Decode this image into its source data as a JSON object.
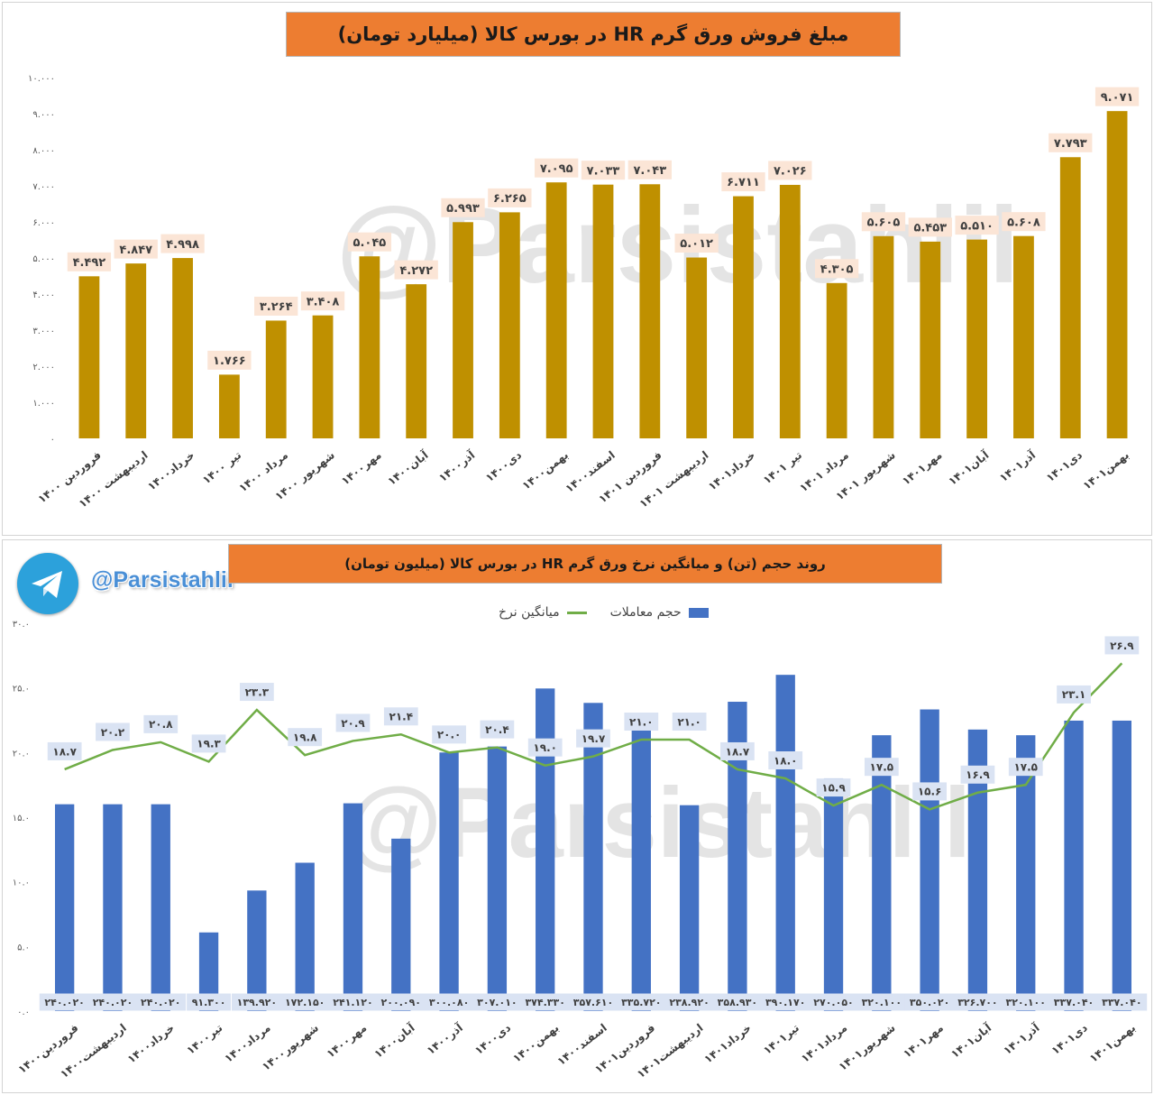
{
  "colors": {
    "title_bg": "#ed7d31",
    "bar1": "#bf9000",
    "bar2": "#4472c4",
    "line": "#70ad47",
    "label_bg1": "#fbe5d6",
    "label_bg2": "#dae3f3"
  },
  "watermark": "@Parsistahlil",
  "telegram": {
    "icon": "telegram-icon",
    "handle": "@Parsistahlil"
  },
  "chart_data": [
    {
      "type": "bar",
      "title": "مبلغ فروش  ورق گرم HR در بورس کالا (میلیارد تومان)",
      "categories": [
        "فروردین ۱۴۰۰",
        "اردیبهشت ۱۴۰۰",
        "خرداد۱۴۰۰",
        "تیر ۱۴۰۰",
        "مرداد ۱۴۰۰",
        "شهریور ۱۴۰۰",
        "مهر۱۴۰۰",
        "آبان۱۴۰۰",
        "آذر۱۴۰۰",
        "دی۱۴۰۰",
        "بهمن۱۴۰۰",
        "اسفند۱۴۰۰",
        "فروردین ۱۴۰۱",
        "اردیبهشت ۱۴۰۱",
        "خرداد۱۴۰۱",
        "تیر ۱۴۰۱",
        "مرداد ۱۴۰۱",
        "شهریور ۱۴۰۱",
        "مهر۱۴۰۱",
        "آبان۱۴۰۱",
        "آذر۱۴۰۱",
        "دی۱۴۰۱",
        "بهمن۱۴۰۱"
      ],
      "values": [
        4492,
        4847,
        4998,
        1766,
        3264,
        3408,
        5045,
        4272,
        5993,
        6265,
        7095,
        7033,
        7043,
        5012,
        6711,
        7026,
        4305,
        5605,
        5453,
        5510,
        5608,
        7793,
        9071
      ],
      "data_labels": [
        "۴.۴۹۲",
        "۴.۸۴۷",
        "۴.۹۹۸",
        "۱.۷۶۶",
        "۳.۲۶۴",
        "۳.۴۰۸",
        "۵.۰۴۵",
        "۴.۲۷۲",
        "۵.۹۹۳",
        "۶.۲۶۵",
        "۷.۰۹۵",
        "۷.۰۳۳",
        "۷.۰۴۳",
        "۵.۰۱۲",
        "۶.۷۱۱",
        "۷.۰۲۶",
        "۴.۳۰۵",
        "۵.۶۰۵",
        "۵.۴۵۳",
        "۵.۵۱۰",
        "۵.۶۰۸",
        "۷.۷۹۳",
        "۹.۰۷۱"
      ],
      "ylim": [
        0,
        10000
      ],
      "y_ticks": [
        0,
        1000,
        2000,
        3000,
        4000,
        5000,
        6000,
        7000,
        8000,
        9000,
        10000
      ],
      "y_tick_labels": [
        "۰",
        "۱.۰۰۰",
        "۲.۰۰۰",
        "۳.۰۰۰",
        "۴.۰۰۰",
        "۵.۰۰۰",
        "۶.۰۰۰",
        "۷.۰۰۰",
        "۸.۰۰۰",
        "۹.۰۰۰",
        "۱۰.۰۰۰"
      ],
      "grid": false
    },
    {
      "type": "bar",
      "title": "روند حجم (تن) و میانگین نرخ  ورق گرم HR در بورس کالا (میلیون تومان)",
      "legend_position": "top",
      "categories": [
        "فروردین۱۴۰۰",
        "اردیبهشت۱۴۰۰",
        "خرداد۱۴۰۰",
        "تیر۱۴۰۰",
        "مرداد۱۴۰۰",
        "شهریور۱۴۰۰",
        "مهر۱۴۰۰",
        "آبان۱۴۰۰",
        "آذر۱۴۰۰",
        "دی۱۴۰۰",
        "بهمن۱۴۰۰",
        "اسفند۱۴۰۰",
        "فروردین۱۴۰۱",
        "اردیبهشت۱۴۰۱",
        "خرداد۱۴۰۱",
        "تیر۱۴۰۱",
        "مرداد۱۴۰۱",
        "شهریور۱۴۰۱",
        "مهر۱۴۰۱",
        "آبان۱۴۰۱",
        "آذر۱۴۰۱",
        "دی۱۴۰۱",
        "بهمن۱۴۰۱"
      ],
      "series": [
        {
          "name": "حجم معاملات",
          "kind": "bar",
          "values": [
            240020,
            240020,
            240020,
            91300,
            139920,
            172150,
            241120,
            200090,
            300080,
            307010,
            374330,
            357610,
            335720,
            238920,
            358930,
            390170,
            270050,
            320100,
            350020,
            326700,
            320100,
            337040,
            337040
          ],
          "data_labels": [
            "۲۴۰.۰۲۰",
            "۲۴۰.۰۲۰",
            "۲۴۰.۰۲۰",
            "۹۱.۳۰۰",
            "۱۳۹.۹۲۰",
            "۱۷۲.۱۵۰",
            "۲۴۱.۱۲۰",
            "۲۰۰.۰۹۰",
            "۳۰۰.۰۸۰",
            "۳۰۷.۰۱۰",
            "۳۷۴.۳۳۰",
            "۳۵۷.۶۱۰",
            "۳۳۵.۷۲۰",
            "۲۳۸.۹۲۰",
            "۳۵۸.۹۳۰",
            "۳۹۰.۱۷۰",
            "۲۷۰.۰۵۰",
            "۳۲۰.۱۰۰",
            "۳۵۰.۰۲۰",
            "۳۲۶.۷۰۰",
            "۳۲۰.۱۰۰",
            "۳۳۷.۰۴۰",
            "۳۳۷.۰۴۰"
          ]
        },
        {
          "name": "میانگین نرخ",
          "kind": "line",
          "values": [
            18.7,
            20.2,
            20.8,
            19.3,
            23.3,
            19.8,
            20.9,
            21.4,
            20.0,
            20.4,
            19.0,
            19.7,
            21.0,
            21.0,
            18.7,
            18.0,
            15.9,
            17.5,
            15.6,
            16.9,
            17.5,
            23.1,
            26.9
          ],
          "data_labels": [
            "۱۸.۷",
            "۲۰.۲",
            "۲۰.۸",
            "۱۹.۳",
            "۲۳.۳",
            "۱۹.۸",
            "۲۰.۹",
            "۲۱.۴",
            "۲۰.۰",
            "۲۰.۴",
            "۱۹.۰",
            "۱۹.۷",
            "۲۱.۰",
            "۲۱.۰",
            "۱۸.۷",
            "۱۸.۰",
            "۱۵.۹",
            "۱۷.۵",
            "۱۵.۶",
            "۱۶.۹",
            "۱۷.۵",
            "۲۳.۱",
            "۲۶.۹"
          ]
        }
      ],
      "ylim": [
        0,
        30
      ],
      "y_ticks": [
        0,
        5,
        10,
        15,
        20,
        25,
        30
      ],
      "y_tick_labels": [
        "۰.۰",
        "۵.۰",
        "۱۰.۰",
        "۱۵.۰",
        "۲۰.۰",
        "۲۵.۰",
        "۳۰.۰"
      ],
      "grid": false
    }
  ]
}
